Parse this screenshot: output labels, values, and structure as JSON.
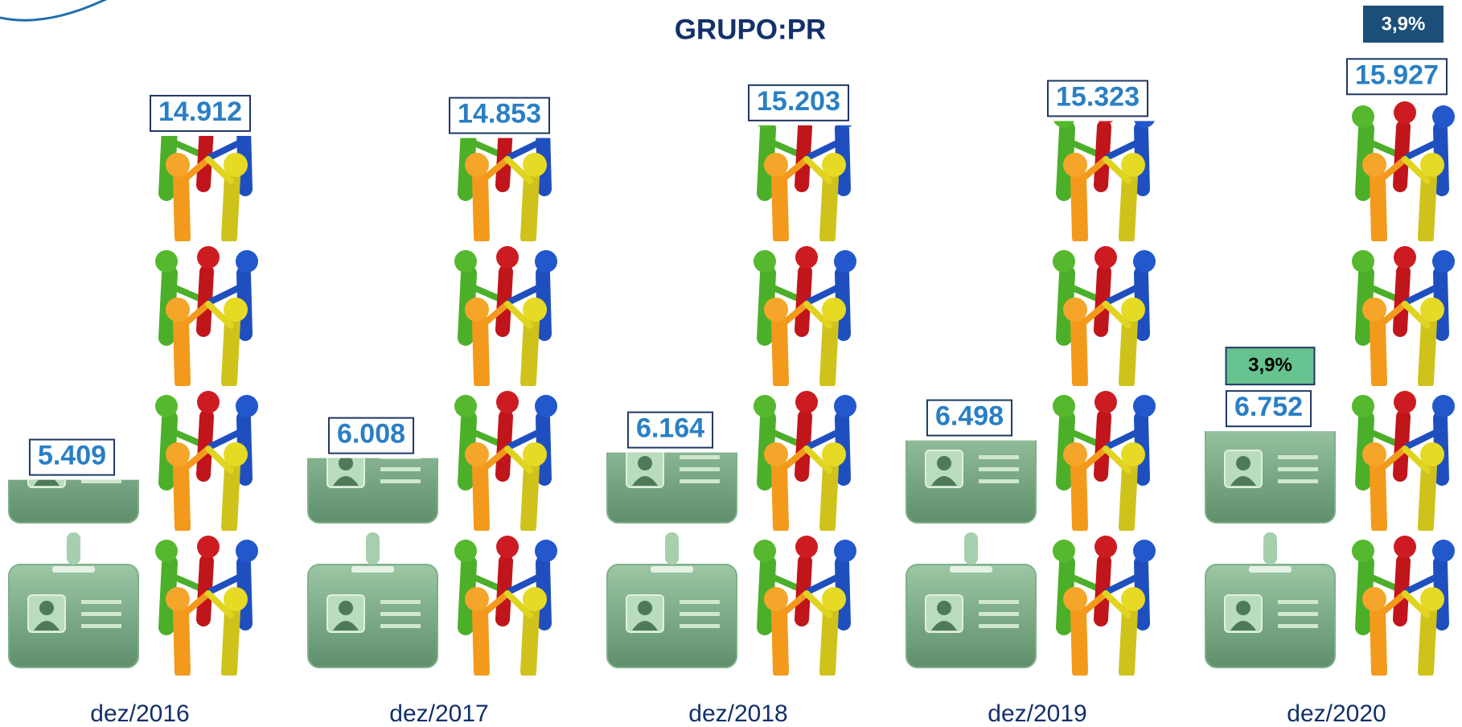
{
  "chart_data": {
    "type": "pictograph",
    "title": "GRUPO:PR",
    "categories": [
      "dez/2016",
      "dez/2017",
      "dez/2018",
      "dez/2019",
      "dez/2020"
    ],
    "series": [
      {
        "color": "#6f9f7b",
        "values": [
          5409,
          6008,
          6164,
          6498,
          6752
        ],
        "value_labels": [
          "5.409",
          "6.008",
          "6.164",
          "6.498",
          "6.752"
        ]
      },
      {
        "color": "#2a7fc4",
        "values": [
          14912,
          14853,
          15203,
          15323,
          15927
        ],
        "value_labels": [
          "14.912",
          "14.853",
          "15.203",
          "15.323",
          "15.927"
        ]
      }
    ],
    "annotations": [
      {
        "text": "3,9%"
      },
      {
        "text": "3,9%"
      }
    ]
  }
}
